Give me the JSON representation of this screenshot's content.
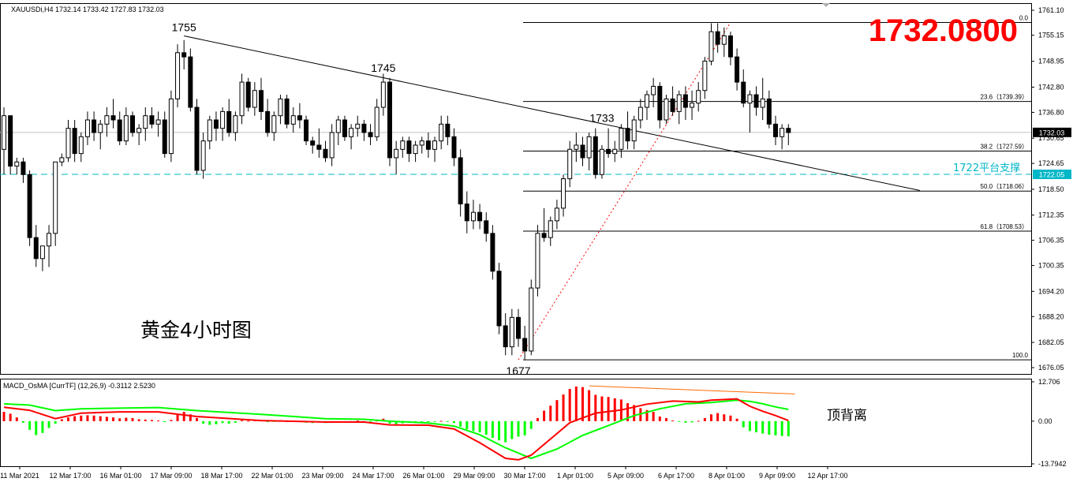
{
  "header": {
    "symbol_line": "XAUUSDi,H4  1732.14 1733.42 1727.83 1732.03",
    "big_price": "1732.0800",
    "chart_label": "黄金4小时图"
  },
  "colors": {
    "bull": "#ffffff",
    "bear": "#000000",
    "price_line": "#c0c0c0",
    "support": "#00b7c7",
    "big_price": "#ff0000",
    "macd_fast": "#ff0000",
    "macd_signal": "#00ff00",
    "osma_pos": "#ff0000",
    "osma_neg": "#00ff00",
    "divergence": "#ff6a00"
  },
  "chart_data": [
    {
      "type": "candlestick",
      "title": "XAUUSDi,H4",
      "ylim": [
        1674,
        1763
      ],
      "y_ticks": [
        "1761.10",
        "1755.15",
        "1748.95",
        "1742.80",
        "1736.80",
        "1730.65",
        "1724.65",
        "1718.50",
        "1712.35",
        "1706.35",
        "1700.35",
        "1694.20",
        "1688.20",
        "1682.05",
        "1676.05"
      ],
      "x_ticks": [
        "11 Mar 2021",
        "12 Mar 17:00",
        "16 Mar 01:00",
        "17 Mar 09:00",
        "18 Mar 17:00",
        "22 Mar 01:00",
        "23 Mar 09:00",
        "24 Mar 17:00",
        "26 Mar 01:00",
        "29 Mar 09:00",
        "30 Mar 17:00",
        "1 Apr 01:00",
        "5 Apr 09:00",
        "6 Apr 17:00",
        "8 Apr 01:00",
        "9 Apr 09:00",
        "12 Apr 17:00"
      ],
      "current_price": "1732.03",
      "support": {
        "value": 1722.05,
        "label": "1722.05",
        "text": "1722平台支撑"
      },
      "fibonacci": [
        {
          "level": "0.0",
          "price": 1758.2,
          "text": "0.0"
        },
        {
          "level": "23.6",
          "price": 1739.39,
          "text": "23.6（1739.39）"
        },
        {
          "level": "38.2",
          "price": 1727.59,
          "text": "38.2（1727.59）"
        },
        {
          "level": "50.0",
          "price": 1718.06,
          "text": "50.0（1718.06）"
        },
        {
          "level": "61.8",
          "price": 1708.53,
          "text": "61.8（1708.53）"
        },
        {
          "level": "100.0",
          "price": 1677.9,
          "text": "100.0"
        }
      ],
      "annotations": [
        {
          "text": "1755",
          "price": 1755
        },
        {
          "text": "1745",
          "price": 1745
        },
        {
          "text": "1733",
          "price": 1733
        },
        {
          "text": "1677",
          "price": 1677
        }
      ],
      "trendline": {
        "from": 1755,
        "to": 1718.2
      },
      "fib_swing": {
        "low": 1677.9,
        "high": 1758.2
      },
      "candles": [
        [
          1728,
          1738,
          1722,
          1736
        ],
        [
          1736,
          1736,
          1722,
          1724
        ],
        [
          1724,
          1726,
          1722,
          1725
        ],
        [
          1725,
          1726,
          1720,
          1722
        ],
        [
          1722,
          1723,
          1705,
          1707
        ],
        [
          1707,
          1710,
          1700,
          1702
        ],
        [
          1702,
          1705,
          1699,
          1705
        ],
        [
          1705,
          1710,
          1700,
          1708
        ],
        [
          1708,
          1725,
          1705,
          1725
        ],
        [
          1725,
          1727,
          1724,
          1726
        ],
        [
          1726,
          1735,
          1725,
          1733
        ],
        [
          1733,
          1735,
          1725,
          1727
        ],
        [
          1727,
          1732,
          1725,
          1731
        ],
        [
          1731,
          1737,
          1729,
          1735
        ],
        [
          1735,
          1737,
          1730,
          1732
        ],
        [
          1732,
          1735,
          1728,
          1734
        ],
        [
          1734,
          1738,
          1731,
          1736
        ],
        [
          1736,
          1740,
          1733,
          1735
        ],
        [
          1735,
          1737,
          1729,
          1730
        ],
        [
          1730,
          1738,
          1729,
          1736
        ],
        [
          1736,
          1737,
          1731,
          1732
        ],
        [
          1732,
          1734,
          1729,
          1733
        ],
        [
          1733,
          1738,
          1730,
          1736
        ],
        [
          1736,
          1738,
          1733,
          1734
        ],
        [
          1734,
          1737,
          1731,
          1735
        ],
        [
          1735,
          1737,
          1726,
          1727
        ],
        [
          1727,
          1742,
          1725,
          1740
        ],
        [
          1740,
          1753,
          1738,
          1751
        ],
        [
          1751,
          1754,
          1747,
          1750
        ],
        [
          1750,
          1752,
          1737,
          1738
        ],
        [
          1738,
          1740,
          1722,
          1723
        ],
        [
          1723,
          1732,
          1721,
          1730
        ],
        [
          1730,
          1736,
          1728,
          1735
        ],
        [
          1735,
          1737,
          1730,
          1733
        ],
        [
          1733,
          1738,
          1730,
          1737
        ],
        [
          1737,
          1740,
          1731,
          1732
        ],
        [
          1732,
          1737,
          1730,
          1736
        ],
        [
          1736,
          1746,
          1734,
          1744
        ],
        [
          1744,
          1745,
          1737,
          1738
        ],
        [
          1738,
          1744,
          1736,
          1742
        ],
        [
          1742,
          1745,
          1735,
          1737
        ],
        [
          1737,
          1740,
          1731,
          1732
        ],
        [
          1732,
          1737,
          1730,
          1736
        ],
        [
          1736,
          1741,
          1734,
          1740
        ],
        [
          1740,
          1741,
          1733,
          1734
        ],
        [
          1734,
          1738,
          1732,
          1736
        ],
        [
          1736,
          1739,
          1733,
          1735
        ],
        [
          1735,
          1736,
          1729,
          1730
        ],
        [
          1730,
          1731,
          1727,
          1729
        ],
        [
          1729,
          1733,
          1726,
          1728
        ],
        [
          1728,
          1730,
          1725,
          1726
        ],
        [
          1726,
          1734,
          1724,
          1732
        ],
        [
          1732,
          1736,
          1729,
          1735
        ],
        [
          1735,
          1736,
          1730,
          1731
        ],
        [
          1731,
          1734,
          1728,
          1733
        ],
        [
          1733,
          1736,
          1731,
          1734
        ],
        [
          1734,
          1735,
          1730,
          1732
        ],
        [
          1732,
          1734,
          1729,
          1731
        ],
        [
          1731,
          1740,
          1730,
          1738
        ],
        [
          1738,
          1746,
          1736,
          1744
        ],
        [
          1744,
          1745,
          1724,
          1726
        ],
        [
          1726,
          1730,
          1722,
          1728
        ],
        [
          1728,
          1731,
          1726,
          1730
        ],
        [
          1730,
          1731,
          1725,
          1727
        ],
        [
          1727,
          1730,
          1725,
          1729
        ],
        [
          1729,
          1731,
          1727,
          1730
        ],
        [
          1730,
          1732,
          1726,
          1728
        ],
        [
          1728,
          1731,
          1725,
          1730
        ],
        [
          1730,
          1736,
          1728,
          1734
        ],
        [
          1734,
          1736,
          1729,
          1731
        ],
        [
          1731,
          1733,
          1724,
          1726
        ],
        [
          1726,
          1728,
          1712,
          1715
        ],
        [
          1715,
          1718,
          1708,
          1711
        ],
        [
          1711,
          1716,
          1709,
          1713
        ],
        [
          1713,
          1715,
          1709,
          1711
        ],
        [
          1711,
          1713,
          1706,
          1708
        ],
        [
          1708,
          1710,
          1697,
          1699
        ],
        [
          1699,
          1701,
          1684,
          1686
        ],
        [
          1686,
          1689,
          1679,
          1681
        ],
        [
          1681,
          1690,
          1679,
          1688
        ],
        [
          1688,
          1690,
          1681,
          1683
        ],
        [
          1683,
          1686,
          1678,
          1680
        ],
        [
          1680,
          1697,
          1679,
          1695
        ],
        [
          1695,
          1710,
          1693,
          1708
        ],
        [
          1708,
          1714,
          1706,
          1707
        ],
        [
          1707,
          1712,
          1705,
          1711
        ],
        [
          1711,
          1716,
          1709,
          1714
        ],
        [
          1714,
          1722,
          1712,
          1721
        ],
        [
          1721,
          1730,
          1719,
          1728
        ],
        [
          1728,
          1732,
          1725,
          1729
        ],
        [
          1729,
          1731,
          1724,
          1726
        ],
        [
          1726,
          1732,
          1723,
          1731
        ],
        [
          1731,
          1733,
          1721,
          1722
        ],
        [
          1722,
          1729,
          1721,
          1728
        ],
        [
          1728,
          1733,
          1726,
          1727
        ],
        [
          1727,
          1730,
          1725,
          1728
        ],
        [
          1728,
          1734,
          1726,
          1733
        ],
        [
          1733,
          1737,
          1728,
          1730
        ],
        [
          1730,
          1736,
          1728,
          1735
        ],
        [
          1735,
          1740,
          1733,
          1738
        ],
        [
          1738,
          1742,
          1735,
          1741
        ],
        [
          1741,
          1745,
          1738,
          1743
        ],
        [
          1743,
          1744,
          1733,
          1735
        ],
        [
          1735,
          1741,
          1734,
          1740
        ],
        [
          1740,
          1743,
          1736,
          1737
        ],
        [
          1737,
          1742,
          1734,
          1741
        ],
        [
          1741,
          1743,
          1735,
          1738
        ],
        [
          1738,
          1742,
          1735,
          1739
        ],
        [
          1739,
          1744,
          1737,
          1742
        ],
        [
          1742,
          1750,
          1740,
          1749
        ],
        [
          1749,
          1758,
          1748,
          1756
        ],
        [
          1756,
          1758,
          1751,
          1753
        ],
        [
          1753,
          1757,
          1750,
          1755
        ],
        [
          1755,
          1756,
          1748,
          1750
        ],
        [
          1750,
          1752,
          1742,
          1744
        ],
        [
          1744,
          1747,
          1738,
          1739
        ],
        [
          1739,
          1742,
          1732,
          1741
        ],
        [
          1741,
          1743,
          1736,
          1738
        ],
        [
          1738,
          1745,
          1735,
          1740
        ],
        [
          1740,
          1742,
          1733,
          1734
        ],
        [
          1734,
          1736,
          1729,
          1731
        ],
        [
          1731,
          1734,
          1728,
          1733
        ],
        [
          1733,
          1734,
          1729,
          1732
        ]
      ]
    },
    {
      "type": "bar",
      "title": "MACD_OsMA [CurrTF] (12,26,9) -0.3112 2.5230",
      "ylim": [
        -13.7942,
        12.706
      ],
      "y_ticks": [
        "12.706",
        "0.00",
        "-13.7942"
      ],
      "divergence_label": "顶背离",
      "osma": [
        3.0,
        2.4,
        1.2,
        -0.5,
        -2.8,
        -4.5,
        -3.8,
        -2.2,
        -0.8,
        0.6,
        1.2,
        1.6,
        1.8,
        1.9,
        1.8,
        1.6,
        1.4,
        1.2,
        0.9,
        1.1,
        1.0,
        0.6,
        0.5,
        0.4,
        0.2,
        -0.3,
        0.4,
        2.0,
        3.0,
        2.2,
        1.0,
        -0.8,
        -1.2,
        -1.0,
        -0.6,
        -0.8,
        -0.5,
        0.3,
        0.1,
        0.4,
        0.2,
        -0.3,
        -0.1,
        0.3,
        0.0,
        0.2,
        -0.2,
        -0.5,
        -0.6,
        -0.4,
        -0.6,
        -0.2,
        0.0,
        -0.3,
        -0.1,
        0.2,
        0.0,
        -0.1,
        0.2,
        0.8,
        -0.8,
        -1.0,
        -0.7,
        -0.5,
        -0.4,
        -0.2,
        -0.3,
        -0.2,
        0.1,
        -0.1,
        -0.6,
        -1.8,
        -2.6,
        -3.2,
        -3.6,
        -4.4,
        -5.4,
        -6.2,
        -6.8,
        -5.8,
        -5.0,
        -4.6,
        -2.5,
        1.0,
        3.4,
        5.0,
        6.8,
        8.6,
        10.4,
        11.2,
        11.0,
        10.0,
        8.5,
        8.0,
        7.8,
        7.4,
        7.0,
        5.8,
        5.2,
        4.2,
        3.6,
        3.0,
        1.5,
        1.0,
        0.2,
        -0.2,
        -0.5,
        -0.4,
        0.1,
        1.0,
        2.2,
        2.6,
        2.2,
        1.8,
        0.8,
        -2.0,
        -3.2,
        -3.6,
        -4.0,
        -4.4,
        -4.6,
        -4.8,
        -4.9
      ],
      "macd_points": [
        [
          0,
          4.5
        ],
        [
          4,
          3.5
        ],
        [
          8,
          0.8
        ],
        [
          12,
          2.6
        ],
        [
          18,
          3.0
        ],
        [
          24,
          3.0
        ],
        [
          30,
          1.5
        ],
        [
          40,
          0.2
        ],
        [
          50,
          -0.3
        ],
        [
          56,
          -0.3
        ],
        [
          60,
          -1.2
        ],
        [
          66,
          -1.3
        ],
        [
          70,
          -2.5
        ],
        [
          74,
          -7.0
        ],
        [
          78,
          -12.0
        ],
        [
          80,
          -12.5
        ],
        [
          82,
          -11.0
        ],
        [
          86,
          -4.0
        ],
        [
          88,
          -0.5
        ],
        [
          92,
          2.6
        ],
        [
          96,
          3.6
        ],
        [
          100,
          5.5
        ],
        [
          104,
          6.5
        ],
        [
          108,
          6.2
        ],
        [
          110,
          6.8
        ],
        [
          114,
          7.2
        ],
        [
          116,
          4.8
        ],
        [
          118,
          3.2
        ],
        [
          120,
          1.8
        ],
        [
          122,
          0.2
        ]
      ],
      "signal_points": [
        [
          0,
          5.6
        ],
        [
          4,
          5.2
        ],
        [
          8,
          3.4
        ],
        [
          12,
          4.0
        ],
        [
          18,
          4.2
        ],
        [
          24,
          4.4
        ],
        [
          30,
          3.4
        ],
        [
          40,
          2.2
        ],
        [
          50,
          0.8
        ],
        [
          56,
          0.6
        ],
        [
          60,
          0.0
        ],
        [
          66,
          -0.6
        ],
        [
          70,
          -1.6
        ],
        [
          74,
          -4.4
        ],
        [
          78,
          -8.6
        ],
        [
          82,
          -12.0
        ],
        [
          86,
          -9.0
        ],
        [
          90,
          -4.6
        ],
        [
          94,
          -1.4
        ],
        [
          98,
          1.8
        ],
        [
          102,
          4.0
        ],
        [
          106,
          5.6
        ],
        [
          110,
          6.0
        ],
        [
          114,
          6.8
        ],
        [
          116,
          6.4
        ],
        [
          118,
          5.6
        ],
        [
          120,
          4.6
        ],
        [
          122,
          3.8
        ]
      ],
      "divergence_line": [
        [
          91,
          11.4
        ],
        [
          123,
          8.8
        ]
      ]
    }
  ]
}
